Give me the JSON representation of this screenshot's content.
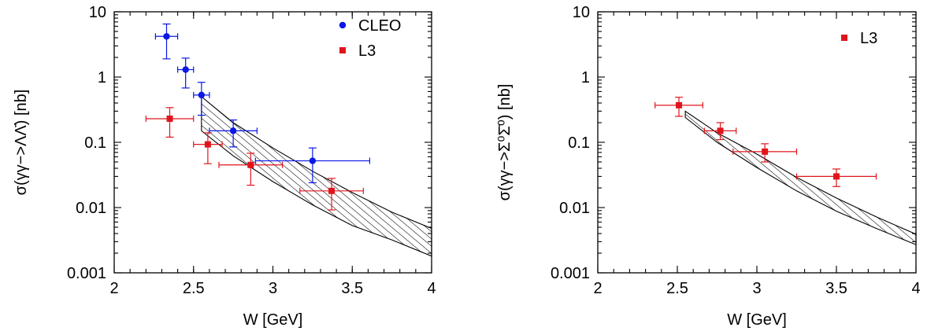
{
  "colors": {
    "cleo": "#0a17e6",
    "l3": "#e0151c",
    "band": "#000000"
  },
  "chart_data": [
    {
      "type": "scatter",
      "xlabel": "W [GeV]",
      "ylabel_prefix": "σ(γγ−>",
      "ylabel_particles": "ΛΛ̄",
      "ylabel_suffix": ") [nb]",
      "xlim": [
        2,
        4
      ],
      "ylim": [
        0.001,
        10
      ],
      "yscale": "log",
      "grid": false,
      "legend_position": "top-right",
      "x_ticks": [
        "2",
        "2.5",
        "3",
        "3.5",
        "4"
      ],
      "y_ticks": [
        "0.001",
        "0.01",
        "0.1",
        "1",
        "10"
      ],
      "series": [
        {
          "name": "CLEO",
          "marker": "circle",
          "color_key": "cleo",
          "points": [
            {
              "x": 2.33,
              "xerr": [
                0.07,
                0.07
              ],
              "y": 4.2,
              "ylo": 1.9,
              "yhi": 6.5
            },
            {
              "x": 2.45,
              "xerr": [
                0.05,
                0.05
              ],
              "y": 1.3,
              "ylo": 0.68,
              "yhi": 1.95
            },
            {
              "x": 2.55,
              "xerr": [
                0.05,
                0.05
              ],
              "y": 0.53,
              "ylo": 0.26,
              "yhi": 0.83
            },
            {
              "x": 2.75,
              "xerr": [
                0.15,
                0.15
              ],
              "y": 0.15,
              "ylo": 0.085,
              "yhi": 0.22
            },
            {
              "x": 3.25,
              "xerr": [
                0.36,
                0.36
              ],
              "y": 0.052,
              "ylo": 0.024,
              "yhi": 0.082
            }
          ]
        },
        {
          "name": "L3",
          "marker": "square",
          "color_key": "l3",
          "points": [
            {
              "x": 2.35,
              "xerr": [
                0.15,
                0.15
              ],
              "y": 0.23,
              "ylo": 0.12,
              "yhi": 0.34
            },
            {
              "x": 2.59,
              "xerr": [
                0.09,
                0.09
              ],
              "y": 0.093,
              "ylo": 0.047,
              "yhi": 0.14
            },
            {
              "x": 2.86,
              "xerr": [
                0.2,
                0.2
              ],
              "y": 0.045,
              "ylo": 0.022,
              "yhi": 0.068
            },
            {
              "x": 3.37,
              "xerr": [
                0.2,
                0.2
              ],
              "y": 0.018,
              "ylo": 0.0092,
              "yhi": 0.028
            }
          ]
        }
      ],
      "band": {
        "x": [
          2.55,
          2.75,
          3.0,
          3.25,
          3.5,
          3.75,
          4.0
        ],
        "upper": [
          0.5,
          0.2,
          0.082,
          0.036,
          0.017,
          0.0085,
          0.0048
        ],
        "lower": [
          0.15,
          0.062,
          0.025,
          0.011,
          0.0053,
          0.0032,
          0.0018
        ]
      }
    },
    {
      "type": "scatter",
      "xlabel": "W [GeV]",
      "ylabel_prefix": "σ(γγ−>",
      "ylabel_particles": "Σ⁰Σ̄⁰",
      "ylabel_suffix": ") [nb]",
      "xlim": [
        2,
        4
      ],
      "ylim": [
        0.001,
        10
      ],
      "yscale": "log",
      "grid": false,
      "legend_position": "top-right",
      "x_ticks": [
        "2",
        "2.5",
        "3",
        "3.5",
        "4"
      ],
      "y_ticks": [
        "0.001",
        "0.01",
        "0.1",
        "1",
        "10"
      ],
      "series": [
        {
          "name": "L3",
          "marker": "square",
          "color_key": "l3",
          "points": [
            {
              "x": 2.51,
              "xerr": [
                0.15,
                0.15
              ],
              "y": 0.37,
              "ylo": 0.25,
              "yhi": 0.49
            },
            {
              "x": 2.77,
              "xerr": [
                0.1,
                0.1
              ],
              "y": 0.15,
              "ylo": 0.11,
              "yhi": 0.2
            },
            {
              "x": 3.05,
              "xerr": [
                0.2,
                0.2
              ],
              "y": 0.072,
              "ylo": 0.05,
              "yhi": 0.095
            },
            {
              "x": 3.5,
              "xerr": [
                0.25,
                0.25
              ],
              "y": 0.03,
              "ylo": 0.021,
              "yhi": 0.039
            }
          ]
        }
      ],
      "band": {
        "x": [
          2.55,
          2.75,
          3.0,
          3.25,
          3.5,
          3.75,
          4.0
        ],
        "upper": [
          0.3,
          0.14,
          0.066,
          0.029,
          0.014,
          0.0072,
          0.0039
        ],
        "lower": [
          0.24,
          0.1,
          0.041,
          0.018,
          0.0088,
          0.0048,
          0.0027
        ]
      }
    }
  ]
}
